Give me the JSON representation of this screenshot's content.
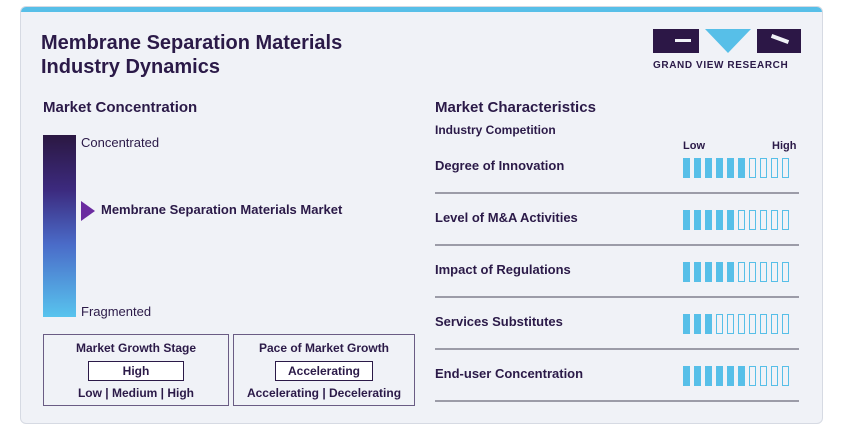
{
  "title_line1": "Membrane Separation Materials",
  "title_line2": "Industry Dynamics",
  "logo_text": "GRAND VIEW RESEARCH",
  "colors": {
    "accent": "#57bfe8",
    "dark": "#2b1a48",
    "marker": "#6b2ca0"
  },
  "concentration": {
    "heading": "Market Concentration",
    "top_label": "Concentrated",
    "bottom_label": "Fragmented",
    "market_label": "Membrane Separation Materials Market",
    "marker_level": 0.42
  },
  "growth_stage": {
    "title": "Market Growth Stage",
    "value": "High",
    "scale": "Low | Medium | High"
  },
  "growth_pace": {
    "title": "Pace of Market Growth",
    "value": "Accelerating",
    "scale": "Accelerating | Decelerating"
  },
  "characteristics": {
    "heading": "Market Characteristics",
    "subheading": "Industry Competition",
    "low_label": "Low",
    "high_label": "High",
    "total_segments": 10,
    "rows": [
      {
        "label": "Degree of Innovation",
        "filled": 6
      },
      {
        "label": "Level of M&A Activities",
        "filled": 5
      },
      {
        "label": "Impact of Regulations",
        "filled": 5
      },
      {
        "label": "Services Substitutes",
        "filled": 3
      },
      {
        "label": "End-user Concentration",
        "filled": 6
      }
    ]
  }
}
